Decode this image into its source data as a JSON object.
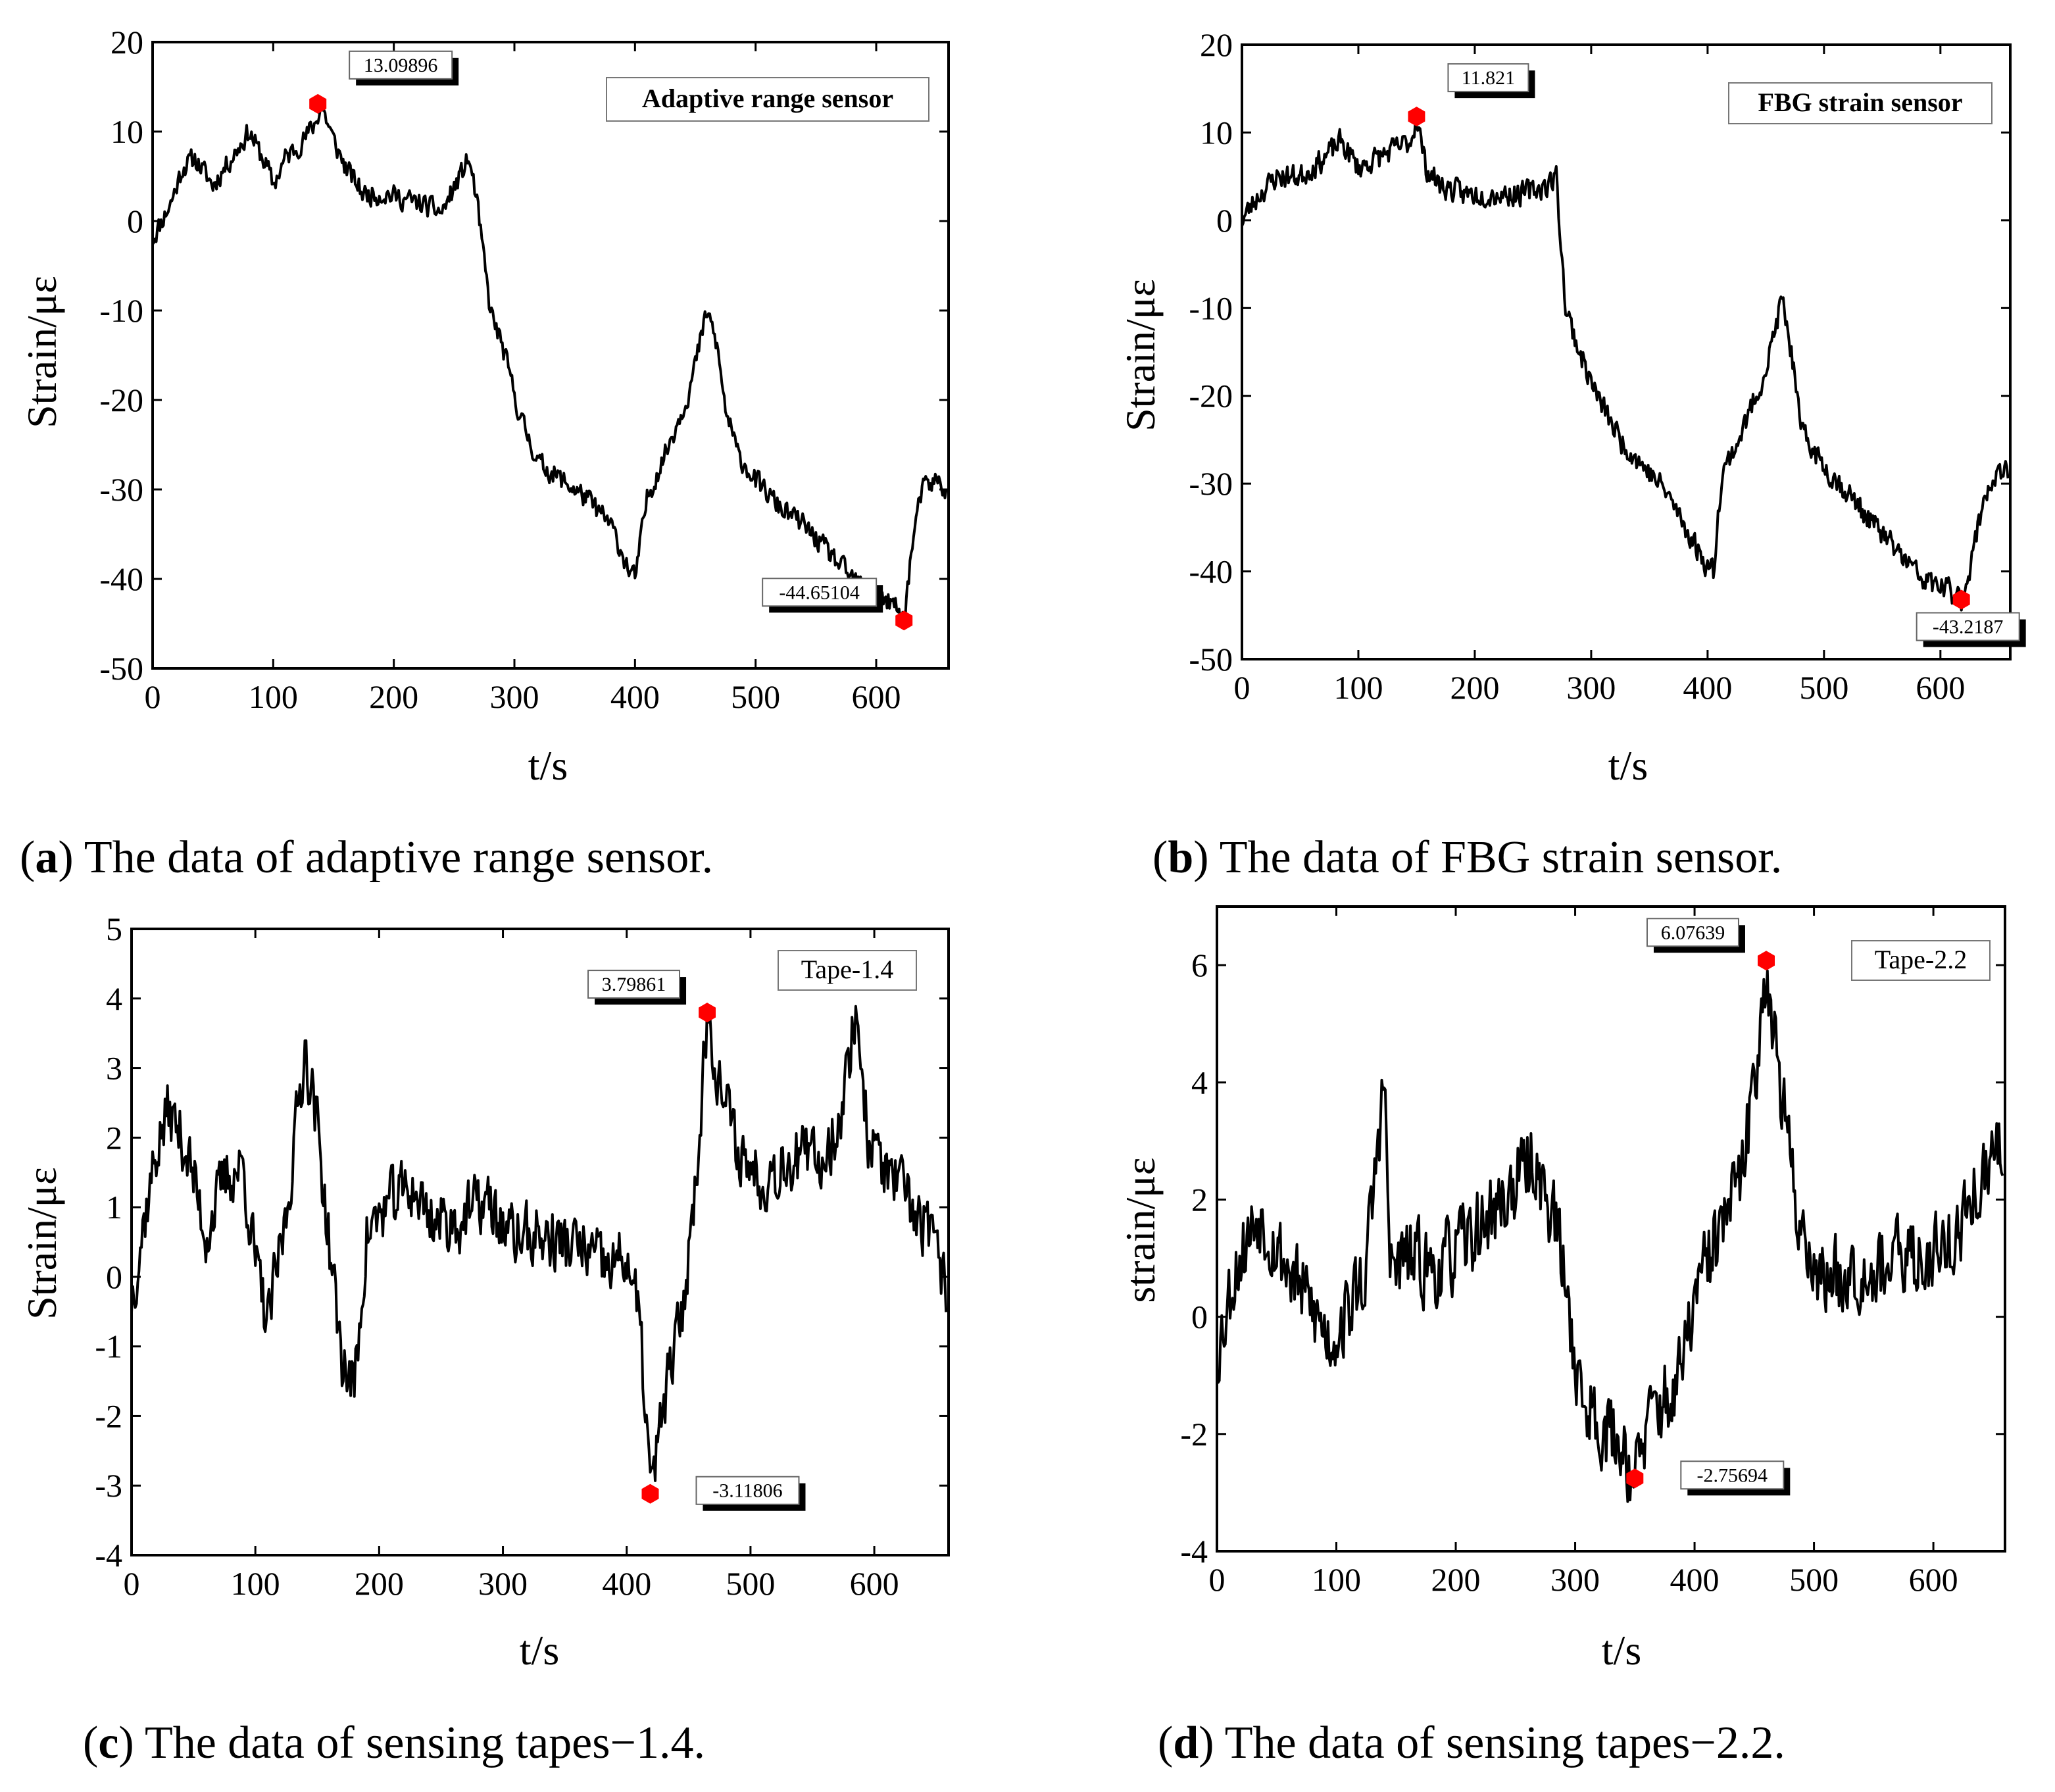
{
  "figure": {
    "captions": [
      {
        "letter": "a",
        "text": " The data of adaptive range sensor."
      },
      {
        "letter": "b",
        "text": " The data of FBG strain sensor."
      },
      {
        "letter": "c",
        "text": " The data of sensing tapes−1.4."
      },
      {
        "letter": "d",
        "text": " The data of sensing tapes−2.2."
      }
    ]
  },
  "colors": {
    "line": "#000000",
    "marker": "#ff0000",
    "axis": "#000000"
  },
  "chart_data": [
    {
      "type": "line",
      "title": "Adaptive range sensor",
      "title_bold": true,
      "xlabel": "t/s",
      "ylabel": "Strain/με",
      "xlim": [
        0,
        660
      ],
      "ylim": [
        -50,
        20
      ],
      "xticks": [
        0,
        100,
        200,
        300,
        400,
        500,
        600
      ],
      "yticks": [
        20,
        10,
        0,
        -10,
        -20,
        -30,
        -40,
        -50
      ],
      "legend_position": "top-right",
      "series": [
        {
          "name": "Adaptive range sensor",
          "keypoints": [
            [
              0,
              -2
            ],
            [
              15,
              2
            ],
            [
              25,
              6
            ],
            [
              35,
              7
            ],
            [
              50,
              4
            ],
            [
              70,
              8
            ],
            [
              80,
              10
            ],
            [
              95,
              6
            ],
            [
              100,
              4
            ],
            [
              110,
              7
            ],
            [
              125,
              9
            ],
            [
              135,
              11
            ],
            [
              140,
              13
            ],
            [
              150,
              9
            ],
            [
              160,
              6
            ],
            [
              175,
              3
            ],
            [
              195,
              3
            ],
            [
              220,
              2
            ],
            [
              240,
              1
            ],
            [
              255,
              5
            ],
            [
              262,
              7
            ],
            [
              268,
              3
            ],
            [
              280,
              -10
            ],
            [
              290,
              -14
            ],
            [
              305,
              -22
            ],
            [
              320,
              -27
            ],
            [
              340,
              -29
            ],
            [
              360,
              -31
            ],
            [
              380,
              -34
            ],
            [
              395,
              -39
            ],
            [
              400,
              -40
            ],
            [
              410,
              -31
            ],
            [
              425,
              -26
            ],
            [
              445,
              -19
            ],
            [
              460,
              -10
            ],
            [
              468,
              -14
            ],
            [
              475,
              -21
            ],
            [
              485,
              -26
            ],
            [
              500,
              -29
            ],
            [
              520,
              -32
            ],
            [
              540,
              -34
            ],
            [
              560,
              -37
            ],
            [
              580,
              -40
            ],
            [
              600,
              -42
            ],
            [
              615,
              -43
            ],
            [
              623,
              -44.65
            ],
            [
              630,
              -36
            ],
            [
              638,
              -30
            ],
            [
              650,
              -29
            ],
            [
              658,
              -30
            ]
          ],
          "noise": 1.6,
          "seed": 11
        }
      ],
      "markers": [
        {
          "x": 137,
          "y": 13.09896,
          "label": "13.09896",
          "label_side": "right-above"
        },
        {
          "x": 623,
          "y": -44.65104,
          "label": "-44.65104",
          "label_side": "left-above"
        }
      ]
    },
    {
      "type": "line",
      "title": "FBG strain sensor",
      "title_bold": true,
      "xlabel": "t/s",
      "ylabel": "Strain/με",
      "xlim": [
        0,
        660
      ],
      "ylim": [
        -50,
        20
      ],
      "xticks": [
        0,
        100,
        200,
        300,
        400,
        500,
        600
      ],
      "yticks": [
        20,
        10,
        0,
        -10,
        -20,
        -30,
        -40,
        -50
      ],
      "legend_position": "top-right",
      "series": [
        {
          "name": "FBG strain sensor",
          "keypoints": [
            [
              0,
              0
            ],
            [
              15,
              3
            ],
            [
              30,
              5
            ],
            [
              50,
              5
            ],
            [
              70,
              7
            ],
            [
              85,
              9
            ],
            [
              100,
              6
            ],
            [
              115,
              7
            ],
            [
              130,
              8
            ],
            [
              145,
              9
            ],
            [
              150,
              11.8
            ],
            [
              158,
              6
            ],
            [
              170,
              4
            ],
            [
              190,
              3
            ],
            [
              215,
              3
            ],
            [
              240,
              3
            ],
            [
              262,
              4
            ],
            [
              270,
              5
            ],
            [
              278,
              -10
            ],
            [
              290,
              -15
            ],
            [
              305,
              -20
            ],
            [
              325,
              -25
            ],
            [
              345,
              -28
            ],
            [
              365,
              -31
            ],
            [
              385,
              -36
            ],
            [
              398,
              -39
            ],
            [
              405,
              -40
            ],
            [
              412,
              -29
            ],
            [
              430,
              -24
            ],
            [
              450,
              -17
            ],
            [
              464,
              -9
            ],
            [
              472,
              -15
            ],
            [
              480,
              -24
            ],
            [
              500,
              -28
            ],
            [
              520,
              -31
            ],
            [
              545,
              -35
            ],
            [
              565,
              -38
            ],
            [
              585,
              -41
            ],
            [
              605,
              -42
            ],
            [
              618,
              -43.2
            ],
            [
              628,
              -38
            ],
            [
              638,
              -31
            ],
            [
              650,
              -29
            ],
            [
              658,
              -29
            ]
          ],
          "noise": 1.8,
          "seed": 23
        }
      ],
      "markers": [
        {
          "x": 150,
          "y": 11.821,
          "label": "11.821",
          "label_side": "right-above"
        },
        {
          "x": 618,
          "y": -43.2187,
          "label": "-43.2187",
          "label_side": "below"
        }
      ]
    },
    {
      "type": "line",
      "title": "Tape-1.4",
      "title_bold": false,
      "xlabel": "t/s",
      "ylabel": "Strain/με",
      "xlim": [
        0,
        660
      ],
      "ylim": [
        -4,
        5
      ],
      "xticks": [
        0,
        100,
        200,
        300,
        400,
        500,
        600
      ],
      "yticks": [
        5,
        4,
        3,
        2,
        1,
        0,
        -1,
        -2,
        -3,
        -4
      ],
      "legend_position": "top-right",
      "series": [
        {
          "name": "Tape-1.4",
          "keypoints": [
            [
              0,
              -0.3
            ],
            [
              10,
              0.8
            ],
            [
              20,
              1.8
            ],
            [
              30,
              2.4
            ],
            [
              45,
              1.8
            ],
            [
              60,
              0.6
            ],
            [
              75,
              1.4
            ],
            [
              90,
              1.6
            ],
            [
              100,
              0.2
            ],
            [
              110,
              -0.7
            ],
            [
              125,
              0.9
            ],
            [
              140,
              3.3
            ],
            [
              150,
              2.2
            ],
            [
              160,
              0.4
            ],
            [
              170,
              -1.2
            ],
            [
              180,
              -1.6
            ],
            [
              190,
              0.6
            ],
            [
              205,
              1.0
            ],
            [
              225,
              1.3
            ],
            [
              245,
              0.8
            ],
            [
              265,
              0.8
            ],
            [
              285,
              1.1
            ],
            [
              305,
              0.6
            ],
            [
              325,
              0.6
            ],
            [
              345,
              0.5
            ],
            [
              365,
              0.4
            ],
            [
              385,
              0.1
            ],
            [
              400,
              0.3
            ],
            [
              410,
              -0.6
            ],
            [
              420,
              -3.1
            ],
            [
              430,
              -1.8
            ],
            [
              445,
              -0.5
            ],
            [
              455,
              1.2
            ],
            [
              465,
              3.8
            ],
            [
              475,
              2.8
            ],
            [
              490,
              1.8
            ],
            [
              510,
              1.4
            ],
            [
              530,
              1.7
            ],
            [
              560,
              1.7
            ],
            [
              575,
              2.5
            ],
            [
              585,
              3.9
            ],
            [
              595,
              2.0
            ],
            [
              610,
              1.5
            ],
            [
              630,
              1.0
            ],
            [
              645,
              0.6
            ],
            [
              658,
              -0.2
            ]
          ],
          "noise": 0.6,
          "seed": 37
        }
      ],
      "markers": [
        {
          "x": 465,
          "y": 3.79861,
          "label": "3.79861",
          "label_side": "left-above"
        },
        {
          "x": 419,
          "y": -3.11806,
          "label": "-3.11806",
          "label_side": "right"
        }
      ]
    },
    {
      "type": "line",
      "title": "Tape-2.2",
      "title_bold": false,
      "xlabel": "t/s",
      "ylabel": "strain/με",
      "xlim": [
        0,
        660
      ],
      "ylim": [
        -4,
        7
      ],
      "xticks": [
        0,
        100,
        200,
        300,
        400,
        500,
        600
      ],
      "yticks": [
        6,
        4,
        2,
        0,
        -2,
        -4
      ],
      "legend_position": "top-right",
      "series": [
        {
          "name": "Tape-2.2",
          "keypoints": [
            [
              0,
              -0.6
            ],
            [
              15,
              0.8
            ],
            [
              35,
              1.8
            ],
            [
              55,
              1.0
            ],
            [
              75,
              0.3
            ],
            [
              95,
              -0.4
            ],
            [
              110,
              0.1
            ],
            [
              125,
              0.8
            ],
            [
              140,
              4.1
            ],
            [
              145,
              0.8
            ],
            [
              160,
              1.0
            ],
            [
              185,
              0.8
            ],
            [
              215,
              1.4
            ],
            [
              245,
              2.1
            ],
            [
              265,
              2.7
            ],
            [
              285,
              1.5
            ],
            [
              305,
              -1.4
            ],
            [
              325,
              -1.9
            ],
            [
              340,
              -2.2
            ],
            [
              350,
              -2.76
            ],
            [
              365,
              -1.6
            ],
            [
              385,
              -1.3
            ],
            [
              400,
              0.3
            ],
            [
              420,
              1.4
            ],
            [
              440,
              2.4
            ],
            [
              452,
              4.4
            ],
            [
              460,
              6.08
            ],
            [
              470,
              4.2
            ],
            [
              485,
              1.9
            ],
            [
              505,
              0.6
            ],
            [
              530,
              0.8
            ],
            [
              560,
              0.9
            ],
            [
              590,
              1.0
            ],
            [
              620,
              1.4
            ],
            [
              640,
              2.3
            ],
            [
              658,
              2.8
            ]
          ],
          "noise": 0.9,
          "seed": 53
        }
      ],
      "markers": [
        {
          "x": 460,
          "y": 6.07639,
          "label": "6.07639",
          "label_side": "left-above"
        },
        {
          "x": 350,
          "y": -2.75694,
          "label": "-2.75694",
          "label_side": "right"
        }
      ]
    }
  ]
}
